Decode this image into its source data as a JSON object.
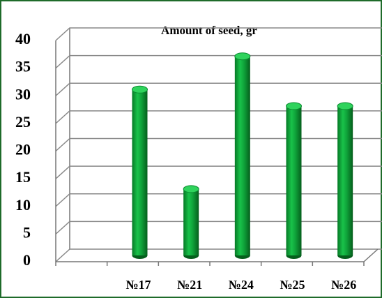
{
  "chart_data": {
    "type": "bar",
    "title": "Amount of seed, gr",
    "categories": [
      null,
      "№17",
      "№21",
      "№24",
      "№25",
      "№26"
    ],
    "values": [
      null,
      30,
      12,
      36,
      27,
      27
    ],
    "color": "#0fa33a",
    "ylim": [
      0,
      40
    ],
    "yticks": [
      0,
      5,
      10,
      15,
      20,
      25,
      30,
      35,
      40
    ],
    "grid": true
  }
}
